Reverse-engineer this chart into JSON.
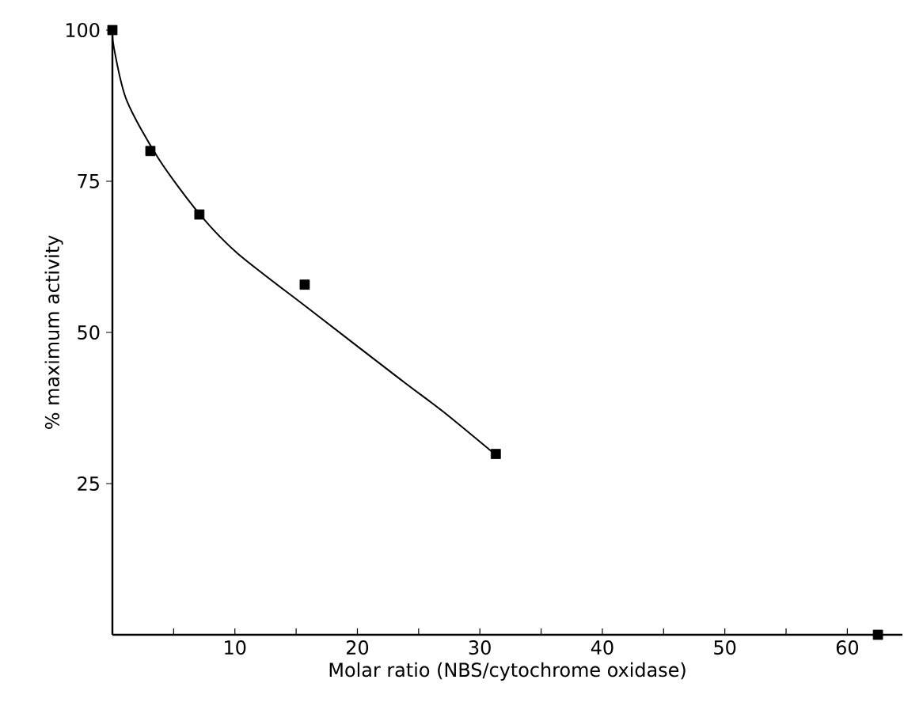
{
  "chart_data": {
    "type": "scatter",
    "xlabel": "Molar ratio (NBS/cytochrome oxidase)",
    "ylabel": "% maximum activity",
    "xlim": [
      0,
      64.5
    ],
    "ylim": [
      0,
      100
    ],
    "xticks": [
      {
        "value": 5,
        "label": null
      },
      10,
      {
        "value": 15,
        "label": null
      },
      20,
      {
        "value": 25,
        "label": null
      },
      30,
      {
        "value": 35,
        "label": null
      },
      40,
      {
        "value": 45,
        "label": null
      },
      50,
      {
        "value": 55,
        "label": null
      },
      60
    ],
    "yticks": [
      25,
      50,
      75,
      100
    ],
    "marker": "square",
    "grid": false,
    "series": [
      {
        "type": "line",
        "color": "#000000",
        "marker": "none",
        "x": [
          0,
          0.13,
          1.16,
          3.75,
          7.1,
          10.2,
          16.3,
          23.6,
          27,
          31.2
        ],
        "values": [
          100,
          97,
          88.4,
          78.8,
          69.6,
          63.1,
          53.5,
          42.1,
          36.9,
          29.9
        ]
      },
      {
        "color": "#000000",
        "x": [
          0,
          3.1,
          7.1,
          15.7,
          31.3
        ],
        "values": [
          100,
          80,
          69.5,
          57.9,
          29.9
        ]
      },
      {
        "color": "#000000",
        "x": [
          62.5
        ],
        "values": [
          0
        ]
      }
    ]
  }
}
